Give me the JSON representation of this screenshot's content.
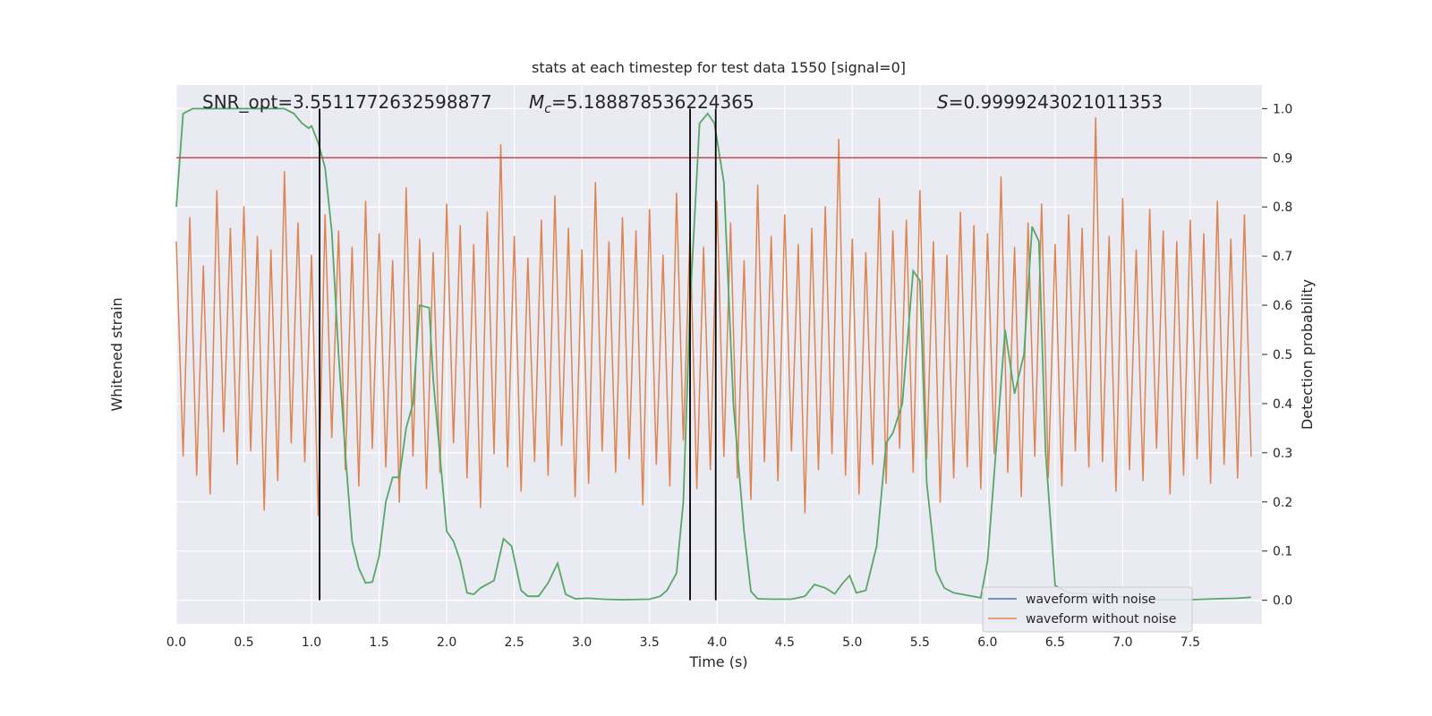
{
  "chart_data": {
    "type": "line",
    "title": "stats at each timestep for test data 1550 [signal=0]",
    "xlabel": "Time (s)",
    "ylabel": "Whitened strain",
    "y2label": "Detection probability",
    "annotations": [
      {
        "text": "SNR_opt=3.5511772632598877"
      },
      {
        "symbol": "M",
        "sub": "c",
        "text": "=5.188878536224365"
      },
      {
        "symbol": "S",
        "text": "=0.9999243021011353"
      }
    ],
    "xlim": [
      0,
      8.03
    ],
    "xticks": [
      {
        "value": 0,
        "label": "0.0"
      },
      0.5,
      {
        "value": 1,
        "label": "1.0"
      },
      1.5,
      {
        "value": 2,
        "label": "2.0"
      },
      2.5,
      {
        "value": 3,
        "label": "3.0"
      },
      3.5,
      {
        "value": 4,
        "label": "4.0"
      },
      4.5,
      {
        "value": 5,
        "label": "5.0"
      },
      5.5,
      {
        "value": 6,
        "label": "6.0"
      },
      6.5,
      {
        "value": 7,
        "label": "7.0"
      },
      7.5
    ],
    "ylim": [
      -1,
      1
    ],
    "y2lim": [
      -0.048,
      1.048
    ],
    "y2ticks": [
      {
        "value": 0,
        "label": "0.0"
      },
      0.1,
      0.2,
      0.3,
      0.4,
      0.5,
      0.6,
      0.7,
      0.8,
      0.9,
      {
        "value": 1,
        "label": "1.0"
      }
    ],
    "grid": true,
    "legend": "lower right",
    "hline": {
      "value": 0.9,
      "color": "#c44e52",
      "axis": "y2"
    },
    "vlines": {
      "values": [
        1.06,
        3.8,
        3.99
      ],
      "color": "#000000"
    },
    "series": [
      {
        "name": "waveform with noise",
        "color": "#4c72b0",
        "x": [],
        "values": []
      },
      {
        "name": "waveform without noise",
        "color": "#dd8452",
        "x": [
          0,
          0.05,
          0.1,
          0.15,
          0.2,
          0.25,
          0.3,
          0.35,
          0.4,
          0.45,
          0.5,
          0.55,
          0.6,
          0.65,
          0.7,
          0.75,
          0.8,
          0.85,
          0.9,
          0.95,
          1,
          1.05,
          1.1,
          1.15,
          1.2,
          1.25,
          1.3,
          1.35,
          1.4,
          1.45,
          1.5,
          1.55,
          1.6,
          1.65,
          1.7,
          1.75,
          1.8,
          1.85,
          1.9,
          1.95,
          2,
          2.05,
          2.1,
          2.15,
          2.2,
          2.25,
          2.3,
          2.35,
          2.4,
          2.45,
          2.5,
          2.55,
          2.6,
          2.65,
          2.7,
          2.75,
          2.8,
          2.85,
          2.9,
          2.95,
          3,
          3.05,
          3.1,
          3.15,
          3.2,
          3.25,
          3.3,
          3.35,
          3.4,
          3.45,
          3.5,
          3.55,
          3.6,
          3.65,
          3.7,
          3.75,
          3.8,
          3.85,
          3.9,
          3.95,
          4,
          4.05,
          4.1,
          4.15,
          4.2,
          4.25,
          4.3,
          4.35,
          4.4,
          4.45,
          4.5,
          4.55,
          4.6,
          4.65,
          4.7,
          4.75,
          4.8,
          4.85,
          4.9,
          4.95,
          5,
          5.05,
          5.1,
          5.15,
          5.2,
          5.25,
          5.3,
          5.35,
          5.4,
          5.45,
          5.5,
          5.55,
          5.6,
          5.65,
          5.7,
          5.75,
          5.8,
          5.85,
          5.9,
          5.95,
          6,
          6.05,
          6.1,
          6.15,
          6.2,
          6.25,
          6.3,
          6.35,
          6.4,
          6.45,
          6.5,
          6.55,
          6.6,
          6.65,
          6.7,
          6.75,
          6.8,
          6.85,
          6.9,
          6.95,
          7,
          7.05,
          7.1,
          7.15,
          7.2,
          7.25,
          7.3,
          7.35,
          7.4,
          7.45,
          7.5,
          7.55,
          7.6,
          7.65,
          7.7,
          7.75,
          7.8,
          7.85,
          7.9,
          7.95
        ],
        "values": [
          0.42,
          -0.38,
          0.51,
          -0.45,
          0.33,
          -0.52,
          0.61,
          -0.29,
          0.47,
          -0.41,
          0.55,
          -0.36,
          0.44,
          -0.58,
          0.39,
          -0.47,
          0.68,
          -0.33,
          0.49,
          -0.4,
          0.37,
          -0.6,
          0.52,
          -0.31,
          0.46,
          -0.43,
          0.4,
          -0.49,
          0.57,
          -0.35,
          0.45,
          -0.42,
          0.35,
          -0.55,
          0.62,
          -0.38,
          0.43,
          -0.5,
          0.38,
          -0.44,
          0.56,
          -0.33,
          0.48,
          -0.46,
          0.41,
          -0.57,
          0.53,
          -0.37,
          0.78,
          -0.42,
          0.44,
          -0.51,
          0.36,
          -0.4,
          0.5,
          -0.45,
          0.59,
          -0.34,
          0.47,
          -0.53,
          0.39,
          -0.48,
          0.64,
          -0.36,
          0.42,
          -0.44,
          0.51,
          -0.39,
          0.46,
          -0.56,
          0.54,
          -0.41,
          0.37,
          -0.49,
          0.6,
          -0.32,
          0.45,
          -0.5,
          0.4,
          -0.43,
          0.57,
          -0.38,
          0.49,
          -0.46,
          0.35,
          -0.54,
          0.63,
          -0.4,
          0.44,
          -0.47,
          0.52,
          -0.36,
          0.41,
          -0.59,
          0.47,
          -0.43,
          0.55,
          -0.37,
          0.8,
          -0.45,
          0.43,
          -0.52,
          0.38,
          -0.41,
          0.58,
          -0.48,
          0.46,
          -0.35,
          0.5,
          -0.44,
          0.61,
          -0.39,
          0.42,
          -0.55,
          0.37,
          -0.46,
          0.53,
          -0.42,
          0.48,
          -0.5,
          0.45,
          -0.37,
          0.66,
          -0.44,
          0.4,
          -0.53,
          0.49,
          -0.38,
          0.56,
          -0.46,
          0.41,
          -0.49,
          0.52,
          -0.36,
          0.47,
          -0.42,
          0.88,
          -0.4,
          0.44,
          -0.51,
          0.58,
          -0.43,
          0.39,
          -0.47,
          0.54,
          -0.35,
          0.46,
          -0.52,
          0.42,
          -0.45,
          0.5,
          -0.39,
          0.45,
          -0.48,
          0.57,
          -0.41,
          0.43,
          -0.46,
          0.52,
          -0.38
        ]
      },
      {
        "name": "Detection probability",
        "color": "#55a868",
        "axis": "y2",
        "x": [
          0,
          0.05,
          0.12,
          0.2,
          0.5,
          0.8,
          0.87,
          0.93,
          0.98,
          1.0,
          1.05,
          1.1,
          1.15,
          1.2,
          1.25,
          1.3,
          1.35,
          1.4,
          1.45,
          1.5,
          1.55,
          1.6,
          1.65,
          1.7,
          1.75,
          1.8,
          1.87,
          1.9,
          2.0,
          2.05,
          2.1,
          2.15,
          2.2,
          2.25,
          2.35,
          2.42,
          2.48,
          2.55,
          2.6,
          2.68,
          2.75,
          2.82,
          2.88,
          2.95,
          3.05,
          3.15,
          3.3,
          3.5,
          3.58,
          3.63,
          3.7,
          3.75,
          3.8,
          3.87,
          3.93,
          3.98,
          4.05,
          4.12,
          4.2,
          4.25,
          4.3,
          4.4,
          4.55,
          4.65,
          4.72,
          4.8,
          4.87,
          4.93,
          4.98,
          5.03,
          5.1,
          5.18,
          5.25,
          5.3,
          5.37,
          5.45,
          5.5,
          5.55,
          5.62,
          5.68,
          5.75,
          5.85,
          5.95,
          6.0,
          6.07,
          6.13,
          6.2,
          6.27,
          6.33,
          6.38,
          6.43,
          6.5,
          6.6,
          6.8,
          7.2,
          7.5,
          7.7,
          7.85,
          7.95
        ],
        "values": [
          0.8,
          0.99,
          1.0,
          1.0,
          1.0,
          1.0,
          0.99,
          0.97,
          0.96,
          0.965,
          0.93,
          0.88,
          0.75,
          0.5,
          0.3,
          0.12,
          0.065,
          0.035,
          0.037,
          0.09,
          0.2,
          0.25,
          0.25,
          0.35,
          0.4,
          0.6,
          0.595,
          0.45,
          0.14,
          0.12,
          0.08,
          0.015,
          0.012,
          0.025,
          0.04,
          0.125,
          0.11,
          0.02,
          0.008,
          0.008,
          0.035,
          0.075,
          0.012,
          0.003,
          0.004,
          0.002,
          0.001,
          0.002,
          0.008,
          0.02,
          0.055,
          0.2,
          0.6,
          0.97,
          0.99,
          0.97,
          0.85,
          0.4,
          0.14,
          0.018,
          0.003,
          0.002,
          0.002,
          0.008,
          0.032,
          0.025,
          0.013,
          0.035,
          0.05,
          0.015,
          0.02,
          0.11,
          0.32,
          0.34,
          0.4,
          0.67,
          0.65,
          0.24,
          0.06,
          0.025,
          0.015,
          0.01,
          0.005,
          0.08,
          0.33,
          0.55,
          0.42,
          0.5,
          0.76,
          0.73,
          0.3,
          0.03,
          0.015,
          0.012,
          0.001,
          0.001,
          0.003,
          0.004,
          0.006
        ]
      }
    ]
  }
}
